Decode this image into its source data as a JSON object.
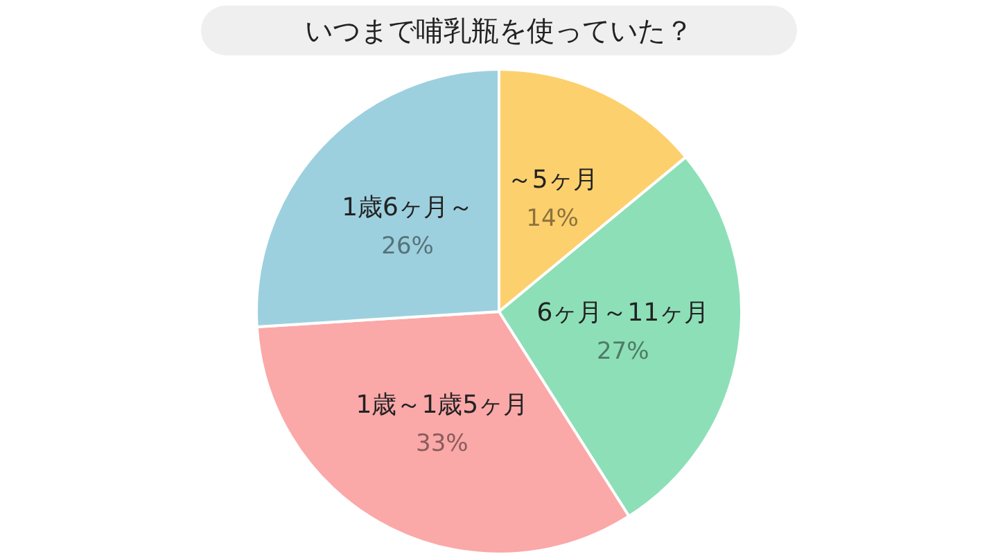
{
  "chart_data": {
    "type": "pie",
    "title": "いつまで哺乳瓶を使っていた？",
    "categories": [
      "～5ヶ月",
      "6ヶ月～11ヶ月",
      "1歳～1歳5ヶ月",
      "1歳6ヶ月～"
    ],
    "values": [
      14,
      27,
      33,
      26
    ],
    "value_labels": [
      "14%",
      "27%",
      "33%",
      "26%"
    ],
    "colors": [
      "#fdd06e",
      "#8ddfb8",
      "#fba8a8",
      "#9dd0de"
    ],
    "legend": false
  }
}
